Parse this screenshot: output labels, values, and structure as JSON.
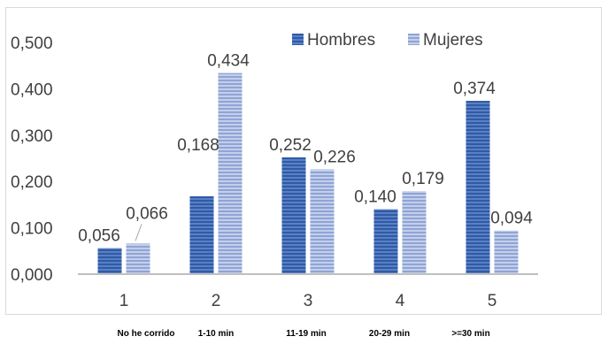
{
  "chart_data": {
    "type": "bar",
    "categories": [
      "1",
      "2",
      "3",
      "4",
      "5"
    ],
    "category_captions": [
      "No he corrido",
      "1-10 min",
      "11-19 min",
      "20-29 min",
      ">=30 min"
    ],
    "series": [
      {
        "name": "Hombres",
        "values": [
          0.056,
          0.168,
          0.252,
          0.14,
          0.374
        ],
        "labels": [
          "0,056",
          "0,168",
          "0,252",
          "0,140",
          "0,374"
        ],
        "color": "#3f67b1"
      },
      {
        "name": "Mujeres",
        "values": [
          0.066,
          0.434,
          0.226,
          0.179,
          0.094
        ],
        "labels": [
          "0,066",
          "0,434",
          "0,226",
          "0,179",
          "0,094"
        ],
        "color": "#a4b5dc"
      }
    ],
    "ylim": [
      0,
      0.5
    ],
    "yticks": [
      0,
      0.1,
      0.2,
      0.3,
      0.4,
      0.5
    ],
    "ytick_labels": [
      "0,000",
      "0,100",
      "0,200",
      "0,300",
      "0,400",
      "0,500"
    ],
    "legend_position": "top-right",
    "grid": false
  }
}
